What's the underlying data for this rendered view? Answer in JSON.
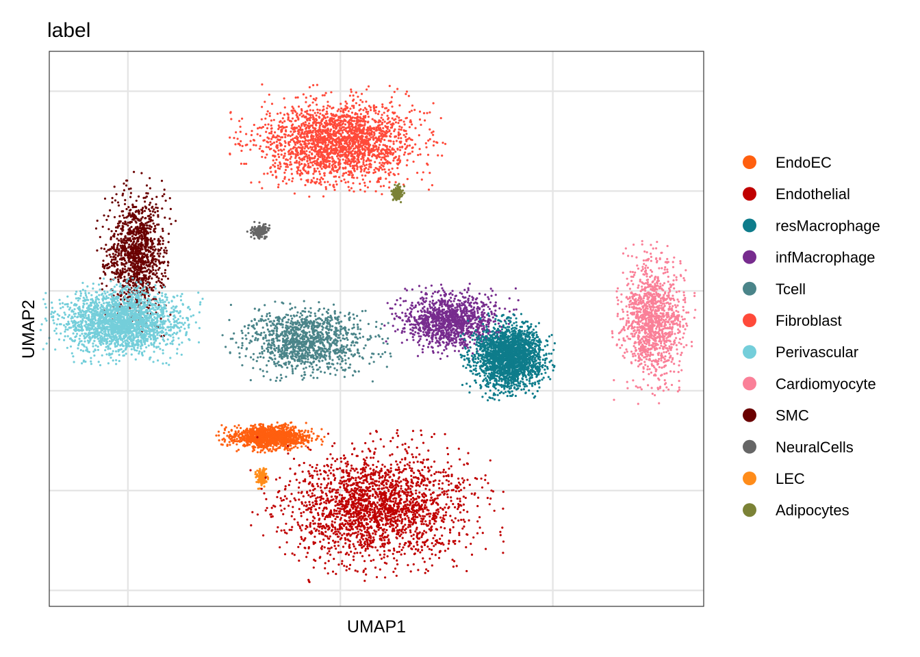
{
  "chart_data": {
    "type": "scatter",
    "title": "label",
    "xlabel": "UMAP1",
    "ylabel": "UMAP2",
    "xlim": [
      -7.4,
      23.4
    ],
    "ylim": [
      -13.3,
      14.5
    ],
    "x_gridlines": [
      -3.7,
      6.3,
      16.3
    ],
    "y_gridlines": [
      -12.5,
      -7.5,
      -2.5,
      2.5,
      7.5,
      12.5
    ],
    "grid": true,
    "show_tick_labels": false,
    "legend_position": "right",
    "legend": [
      {
        "name": "EndoEC",
        "color": "#FF5F0F"
      },
      {
        "name": "Endothelial",
        "color": "#C00000"
      },
      {
        "name": "resMacrophage",
        "color": "#0E7C8B"
      },
      {
        "name": "infMacrophage",
        "color": "#772C8E"
      },
      {
        "name": "Tcell",
        "color": "#4A8489"
      },
      {
        "name": "Fibroblast",
        "color": "#FF4A3A"
      },
      {
        "name": "Perivascular",
        "color": "#74CEDA"
      },
      {
        "name": "Cardiomyocyte",
        "color": "#FA8098"
      },
      {
        "name": "SMC",
        "color": "#6A0000"
      },
      {
        "name": "NeuralCells",
        "color": "#666666"
      },
      {
        "name": "LEC",
        "color": "#FF8C1A"
      },
      {
        "name": "Adipocytes",
        "color": "#7B8236"
      }
    ],
    "clusters": [
      {
        "label": "Fibroblast",
        "center": [
          6.2,
          10.0
        ],
        "spread": [
          3.2,
          1.8
        ],
        "density": "high"
      },
      {
        "label": "SMC",
        "center": [
          -3.3,
          4.3
        ],
        "spread": [
          1.2,
          2.6
        ],
        "density": "medium"
      },
      {
        "label": "Perivascular",
        "center": [
          -4.0,
          1.0
        ],
        "spread": [
          2.4,
          1.4
        ],
        "density": "high"
      },
      {
        "label": "NeuralCells",
        "center": [
          2.5,
          5.5
        ],
        "spread": [
          0.4,
          0.3
        ],
        "density": "low"
      },
      {
        "label": "Tcell",
        "center": [
          4.7,
          0.0
        ],
        "spread": [
          2.5,
          1.4
        ],
        "density": "medium"
      },
      {
        "label": "infMacrophage",
        "center": [
          11.5,
          1.0
        ],
        "spread": [
          2.0,
          1.2
        ],
        "density": "medium"
      },
      {
        "label": "resMacrophage",
        "center": [
          14.2,
          -0.8
        ],
        "spread": [
          1.4,
          1.4
        ],
        "density": "high"
      },
      {
        "label": "Cardiomyocyte",
        "center": [
          21.0,
          1.0
        ],
        "spread": [
          1.3,
          2.6
        ],
        "density": "medium"
      },
      {
        "label": "EndoEC",
        "center": [
          3.0,
          -4.8
        ],
        "spread": [
          1.6,
          0.5
        ],
        "density": "medium"
      },
      {
        "label": "LEC",
        "center": [
          2.6,
          -6.8
        ],
        "spread": [
          0.2,
          0.4
        ],
        "density": "low"
      },
      {
        "label": "Endothelial",
        "center": [
          8.0,
          -8.3
        ],
        "spread": [
          3.8,
          2.4
        ],
        "density": "high"
      },
      {
        "label": "Adipocytes",
        "center": [
          9.0,
          7.4
        ],
        "spread": [
          0.2,
          0.3
        ],
        "density": "low"
      }
    ]
  }
}
